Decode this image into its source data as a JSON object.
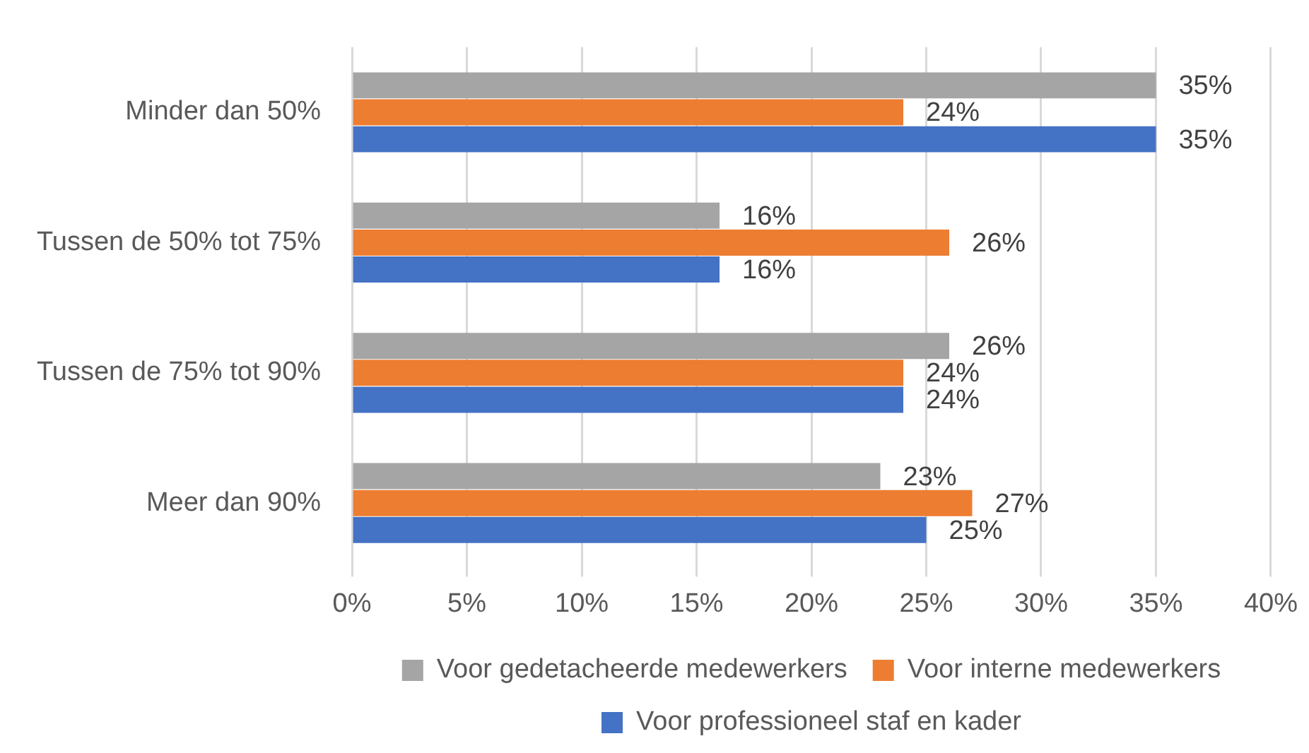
{
  "chart_data": {
    "type": "bar",
    "orientation": "horizontal",
    "categories": [
      "Minder dan 50%",
      "Tussen de 50% tot 75%",
      "Tussen de 75% tot 90%",
      "Meer dan 90%"
    ],
    "series": [
      {
        "name": "Voor gedetacheerde medewerkers",
        "color": "#a5a5a5",
        "values": [
          35,
          16,
          26,
          23
        ],
        "value_labels": [
          "35%",
          "16%",
          "26%",
          "23%"
        ]
      },
      {
        "name": "Voor interne medewerkers",
        "color": "#ed7d31",
        "values": [
          24,
          26,
          24,
          27
        ],
        "value_labels": [
          "24%",
          "26%",
          "24%",
          "27%"
        ]
      },
      {
        "name": "Voor professioneel staf en kader",
        "color": "#4472c4",
        "values": [
          35,
          16,
          24,
          25
        ],
        "value_labels": [
          "35%",
          "16%",
          "24%",
          "25%"
        ]
      }
    ],
    "xlim": [
      0,
      40
    ],
    "xticks": [
      {
        "value": 0,
        "label": "0%"
      },
      {
        "value": 5,
        "label": "5%"
      },
      {
        "value": 10,
        "label": "10%"
      },
      {
        "value": 15,
        "label": "15%"
      },
      {
        "value": 20,
        "label": "20%"
      },
      {
        "value": 25,
        "label": "25%"
      },
      {
        "value": 30,
        "label": "30%"
      },
      {
        "value": 35,
        "label": "35%"
      },
      {
        "value": 40,
        "label": "40%"
      }
    ],
    "grid": "x",
    "legend": "bottom"
  }
}
